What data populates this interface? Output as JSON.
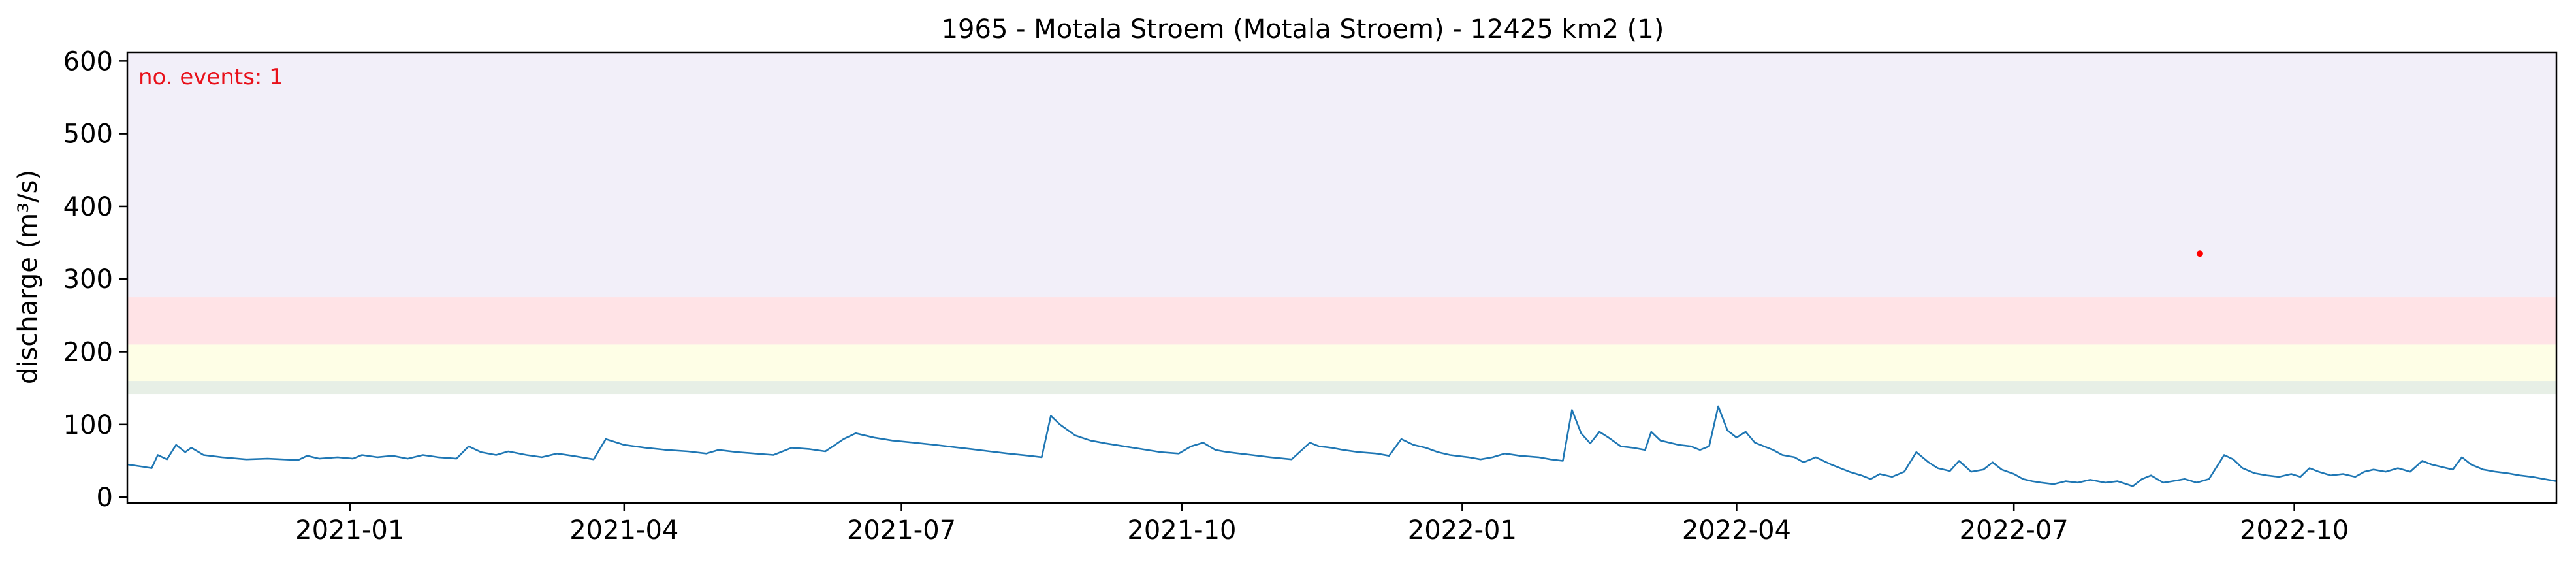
{
  "chart_data": {
    "type": "line",
    "title": "1965 - Motala Stroem (Motala Stroem) - 12425 km2 (1)",
    "xlabel": "",
    "ylabel": "discharge (m³/s)",
    "annotation": "no. events: 1",
    "xlim": [
      "2020-10-20",
      "2022-12-26"
    ],
    "ylim": [
      -8,
      612
    ],
    "x_ticks": [
      "2021-01",
      "2021-04",
      "2021-07",
      "2021-10",
      "2022-01",
      "2022-04",
      "2022-07",
      "2022-10"
    ],
    "x_tick_dates": [
      "2021-01-01",
      "2021-04-01",
      "2021-07-01",
      "2021-10-01",
      "2022-01-01",
      "2022-04-01",
      "2022-07-01",
      "2022-10-01"
    ],
    "y_ticks": [
      0,
      100,
      200,
      300,
      400,
      500,
      600
    ],
    "grid": false,
    "bands": [
      {
        "from": 142,
        "to": 160,
        "color": "#e7efe6"
      },
      {
        "from": 160,
        "to": 210,
        "color": "#fefee6"
      },
      {
        "from": 210,
        "to": 275,
        "color": "#ffe3e6"
      },
      {
        "from": 275,
        "to": 612,
        "color": "#f2eff9"
      }
    ],
    "series": [
      {
        "color": "#1f77b4",
        "points": [
          [
            "2020-10-20",
            45
          ],
          [
            "2020-10-25",
            42
          ],
          [
            "2020-10-28",
            40
          ],
          [
            "2020-10-30",
            58
          ],
          [
            "2020-11-02",
            52
          ],
          [
            "2020-11-05",
            72
          ],
          [
            "2020-11-08",
            62
          ],
          [
            "2020-11-10",
            68
          ],
          [
            "2020-11-14",
            58
          ],
          [
            "2020-11-20",
            55
          ],
          [
            "2020-11-28",
            52
          ],
          [
            "2020-12-05",
            53
          ],
          [
            "2020-12-10",
            52
          ],
          [
            "2020-12-15",
            51
          ],
          [
            "2020-12-18",
            57
          ],
          [
            "2020-12-22",
            53
          ],
          [
            "2020-12-28",
            55
          ],
          [
            "2021-01-02",
            53
          ],
          [
            "2021-01-05",
            58
          ],
          [
            "2021-01-10",
            55
          ],
          [
            "2021-01-15",
            57
          ],
          [
            "2021-01-20",
            53
          ],
          [
            "2021-01-25",
            58
          ],
          [
            "2021-01-30",
            55
          ],
          [
            "2021-02-05",
            53
          ],
          [
            "2021-02-09",
            70
          ],
          [
            "2021-02-13",
            62
          ],
          [
            "2021-02-18",
            58
          ],
          [
            "2021-02-22",
            63
          ],
          [
            "2021-02-28",
            58
          ],
          [
            "2021-03-05",
            55
          ],
          [
            "2021-03-10",
            60
          ],
          [
            "2021-03-15",
            57
          ],
          [
            "2021-03-22",
            52
          ],
          [
            "2021-03-26",
            80
          ],
          [
            "2021-04-01",
            72
          ],
          [
            "2021-04-08",
            68
          ],
          [
            "2021-04-15",
            65
          ],
          [
            "2021-04-22",
            63
          ],
          [
            "2021-04-28",
            60
          ],
          [
            "2021-05-02",
            65
          ],
          [
            "2021-05-08",
            62
          ],
          [
            "2021-05-14",
            60
          ],
          [
            "2021-05-20",
            58
          ],
          [
            "2021-05-26",
            68
          ],
          [
            "2021-06-01",
            66
          ],
          [
            "2021-06-06",
            63
          ],
          [
            "2021-06-12",
            80
          ],
          [
            "2021-06-16",
            88
          ],
          [
            "2021-06-22",
            82
          ],
          [
            "2021-06-28",
            78
          ],
          [
            "2021-07-05",
            75
          ],
          [
            "2021-07-12",
            72
          ],
          [
            "2021-07-18",
            69
          ],
          [
            "2021-07-24",
            66
          ],
          [
            "2021-07-30",
            63
          ],
          [
            "2021-08-05",
            60
          ],
          [
            "2021-08-12",
            57
          ],
          [
            "2021-08-16",
            55
          ],
          [
            "2021-08-19",
            112
          ],
          [
            "2021-08-22",
            100
          ],
          [
            "2021-08-27",
            85
          ],
          [
            "2021-09-01",
            78
          ],
          [
            "2021-09-06",
            74
          ],
          [
            "2021-09-12",
            70
          ],
          [
            "2021-09-18",
            66
          ],
          [
            "2021-09-24",
            62
          ],
          [
            "2021-09-30",
            60
          ],
          [
            "2021-10-04",
            70
          ],
          [
            "2021-10-08",
            75
          ],
          [
            "2021-10-12",
            65
          ],
          [
            "2021-10-16",
            62
          ],
          [
            "2021-10-20",
            60
          ],
          [
            "2021-10-24",
            58
          ],
          [
            "2021-10-30",
            55
          ],
          [
            "2021-11-06",
            52
          ],
          [
            "2021-11-12",
            75
          ],
          [
            "2021-11-15",
            70
          ],
          [
            "2021-11-19",
            68
          ],
          [
            "2021-11-23",
            65
          ],
          [
            "2021-11-28",
            62
          ],
          [
            "2021-12-04",
            60
          ],
          [
            "2021-12-08",
            57
          ],
          [
            "2021-12-12",
            80
          ],
          [
            "2021-12-16",
            72
          ],
          [
            "2021-12-20",
            68
          ],
          [
            "2021-12-24",
            62
          ],
          [
            "2021-12-28",
            58
          ],
          [
            "2022-01-03",
            55
          ],
          [
            "2022-01-07",
            52
          ],
          [
            "2022-01-11",
            55
          ],
          [
            "2022-01-15",
            60
          ],
          [
            "2022-01-20",
            57
          ],
          [
            "2022-01-26",
            55
          ],
          [
            "2022-01-30",
            52
          ],
          [
            "2022-02-03",
            50
          ],
          [
            "2022-02-06",
            120
          ],
          [
            "2022-02-09",
            88
          ],
          [
            "2022-02-12",
            74
          ],
          [
            "2022-02-15",
            90
          ],
          [
            "2022-02-18",
            82
          ],
          [
            "2022-02-22",
            70
          ],
          [
            "2022-02-26",
            68
          ],
          [
            "2022-03-02",
            65
          ],
          [
            "2022-03-04",
            90
          ],
          [
            "2022-03-07",
            78
          ],
          [
            "2022-03-10",
            75
          ],
          [
            "2022-03-13",
            72
          ],
          [
            "2022-03-17",
            70
          ],
          [
            "2022-03-20",
            65
          ],
          [
            "2022-03-23",
            70
          ],
          [
            "2022-03-26",
            125
          ],
          [
            "2022-03-29",
            92
          ],
          [
            "2022-04-01",
            82
          ],
          [
            "2022-04-04",
            90
          ],
          [
            "2022-04-07",
            75
          ],
          [
            "2022-04-10",
            70
          ],
          [
            "2022-04-13",
            65
          ],
          [
            "2022-04-16",
            58
          ],
          [
            "2022-04-20",
            55
          ],
          [
            "2022-04-23",
            48
          ],
          [
            "2022-04-27",
            55
          ],
          [
            "2022-05-02",
            45
          ],
          [
            "2022-05-05",
            40
          ],
          [
            "2022-05-08",
            35
          ],
          [
            "2022-05-12",
            30
          ],
          [
            "2022-05-15",
            25
          ],
          [
            "2022-05-18",
            32
          ],
          [
            "2022-05-22",
            28
          ],
          [
            "2022-05-26",
            35
          ],
          [
            "2022-05-30",
            62
          ],
          [
            "2022-06-03",
            48
          ],
          [
            "2022-06-06",
            40
          ],
          [
            "2022-06-10",
            36
          ],
          [
            "2022-06-13",
            50
          ],
          [
            "2022-06-17",
            35
          ],
          [
            "2022-06-21",
            38
          ],
          [
            "2022-06-24",
            48
          ],
          [
            "2022-06-27",
            38
          ],
          [
            "2022-07-01",
            32
          ],
          [
            "2022-07-04",
            25
          ],
          [
            "2022-07-07",
            22
          ],
          [
            "2022-07-10",
            20
          ],
          [
            "2022-07-14",
            18
          ],
          [
            "2022-07-18",
            22
          ],
          [
            "2022-07-22",
            20
          ],
          [
            "2022-07-26",
            24
          ],
          [
            "2022-07-31",
            20
          ],
          [
            "2022-08-04",
            22
          ],
          [
            "2022-08-07",
            18
          ],
          [
            "2022-08-09",
            15
          ],
          [
            "2022-08-12",
            25
          ],
          [
            "2022-08-15",
            30
          ],
          [
            "2022-08-19",
            20
          ],
          [
            "2022-08-22",
            22
          ],
          [
            "2022-08-26",
            25
          ],
          [
            "2022-08-30",
            20
          ],
          [
            "2022-09-03",
            25
          ],
          [
            "2022-09-08",
            58
          ],
          [
            "2022-09-11",
            52
          ],
          [
            "2022-09-14",
            40
          ],
          [
            "2022-09-18",
            33
          ],
          [
            "2022-09-22",
            30
          ],
          [
            "2022-09-26",
            28
          ],
          [
            "2022-09-30",
            32
          ],
          [
            "2022-10-03",
            28
          ],
          [
            "2022-10-06",
            40
          ],
          [
            "2022-10-09",
            35
          ],
          [
            "2022-10-13",
            30
          ],
          [
            "2022-10-17",
            32
          ],
          [
            "2022-10-21",
            28
          ],
          [
            "2022-10-24",
            35
          ],
          [
            "2022-10-27",
            38
          ],
          [
            "2022-10-31",
            35
          ],
          [
            "2022-11-04",
            40
          ],
          [
            "2022-11-08",
            35
          ],
          [
            "2022-11-12",
            50
          ],
          [
            "2022-11-15",
            45
          ],
          [
            "2022-11-18",
            42
          ],
          [
            "2022-11-22",
            38
          ],
          [
            "2022-11-25",
            55
          ],
          [
            "2022-11-28",
            45
          ],
          [
            "2022-12-02",
            38
          ],
          [
            "2022-12-06",
            35
          ],
          [
            "2022-12-10",
            33
          ],
          [
            "2022-12-14",
            30
          ],
          [
            "2022-12-18",
            28
          ],
          [
            "2022-12-22",
            25
          ],
          [
            "2022-12-26",
            22
          ]
        ]
      }
    ],
    "event_markers": [
      {
        "x": "2022-08-31",
        "y": 335,
        "color": "#ff0000"
      }
    ]
  }
}
